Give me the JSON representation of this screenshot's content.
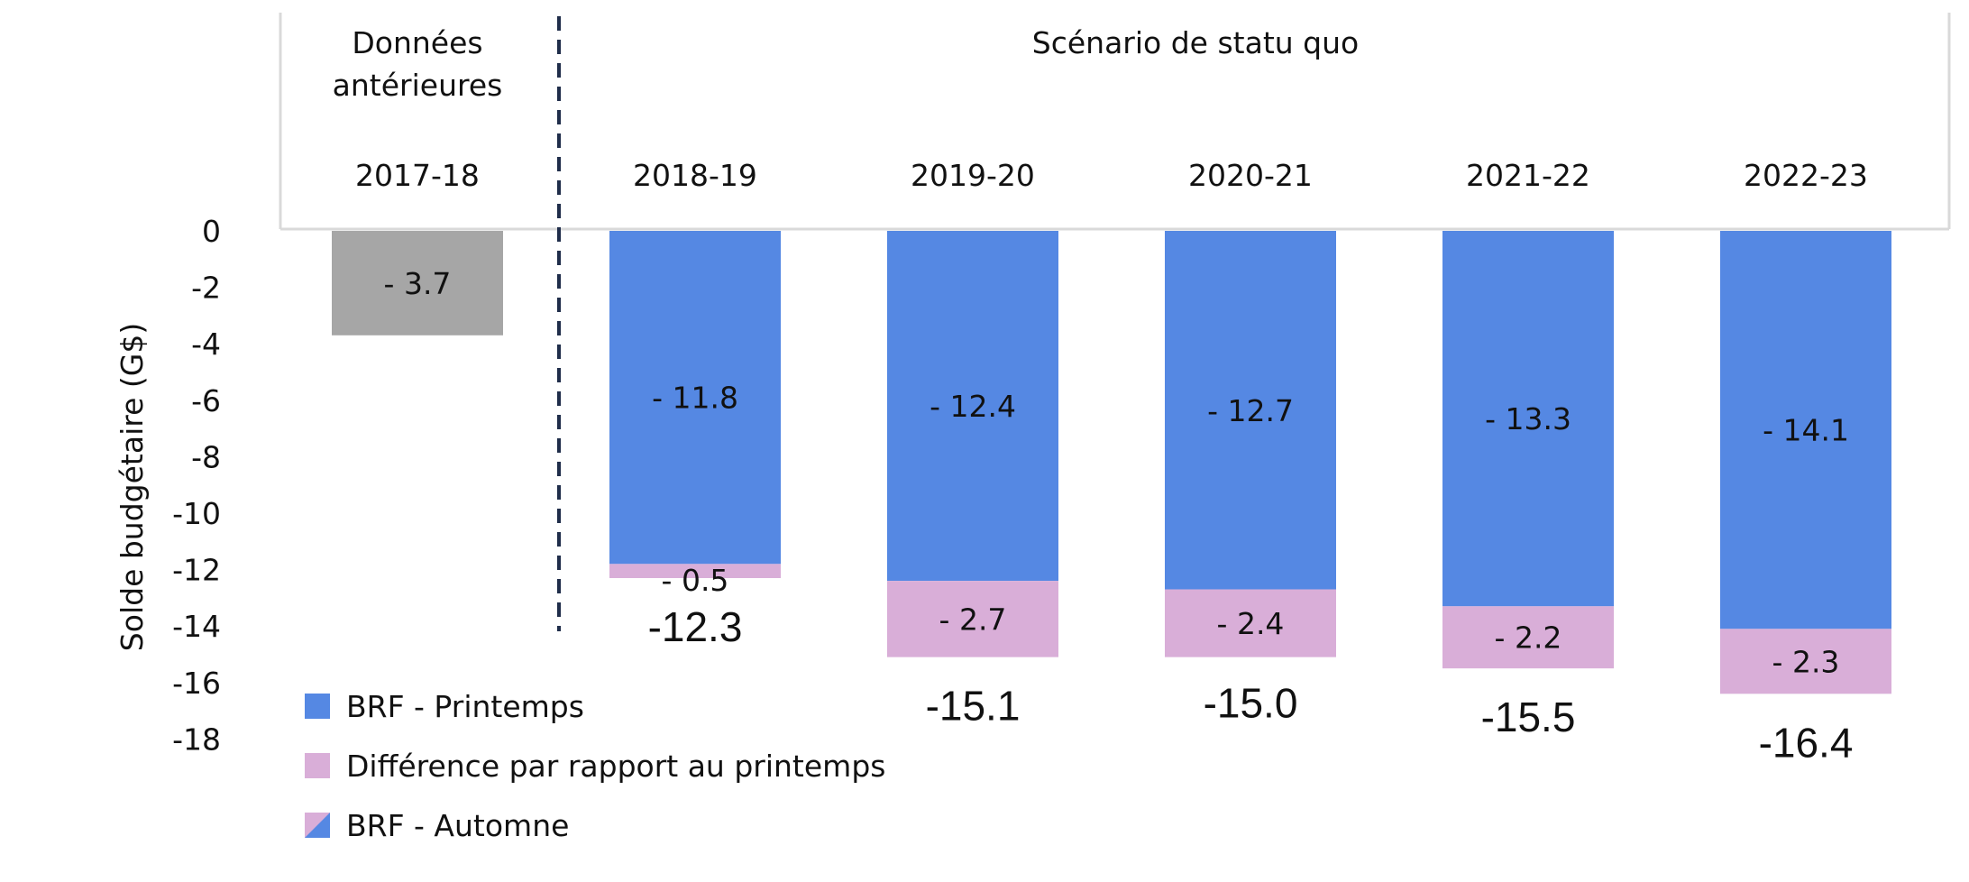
{
  "colors": {
    "historical": "#a6a6a6",
    "spring": "#5588e3",
    "difference": "#d9aed8",
    "divider": "#1f2d4a",
    "header_border": "#d9d9d9"
  },
  "chart_data": {
    "type": "bar",
    "stacked": true,
    "ylabel": "Solde budgétaire (G$)",
    "ylim": [
      -18,
      0
    ],
    "yticks": [
      0,
      -2,
      -4,
      -6,
      -8,
      -10,
      -12,
      -14,
      -16,
      -18
    ],
    "group_labels": {
      "historical": "Données antérieures",
      "scenario": "Scénario de statu quo"
    },
    "categories": [
      "2017-18",
      "2018-19",
      "2019-20",
      "2020-21",
      "2021-22",
      "2022-23"
    ],
    "historical": {
      "category": "2017-18",
      "value": -3.7,
      "label": "- 3.7"
    },
    "series": [
      {
        "name": "BRF - Printemps",
        "values": [
          null,
          -11.8,
          -12.4,
          -12.7,
          -13.3,
          -14.1
        ],
        "labels": [
          "",
          "- 11.8",
          "- 12.4",
          "- 12.7",
          "- 13.3",
          "- 14.1"
        ]
      },
      {
        "name": "Différence par rapport au printemps",
        "values": [
          null,
          -0.5,
          -2.7,
          -2.4,
          -2.2,
          -2.3
        ],
        "labels": [
          "",
          "- 0.5",
          "- 2.7",
          "- 2.4",
          "- 2.2",
          "- 2.3"
        ]
      }
    ],
    "totals": {
      "name": "BRF - Automne",
      "values": [
        null,
        -12.3,
        -15.1,
        -15.0,
        -15.5,
        -16.4
      ],
      "labels": [
        "",
        "-12.3",
        "-15.1",
        "-15.0",
        "-15.5",
        "-16.4"
      ]
    }
  },
  "legend": [
    {
      "label": "BRF - Printemps",
      "icon": "blue-square"
    },
    {
      "label": "Différence par rapport au printemps",
      "icon": "pink-square"
    },
    {
      "label": "BRF - Automne",
      "icon": "split-blue-pink-square"
    }
  ]
}
